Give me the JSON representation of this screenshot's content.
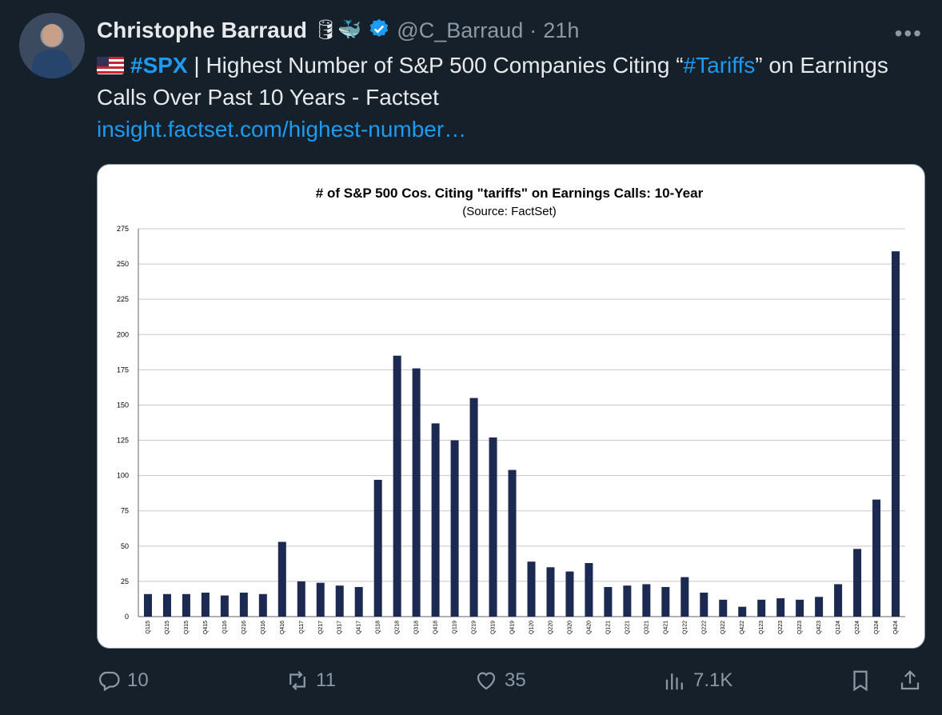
{
  "tweet": {
    "author_name": "Christophe Barraud",
    "handle": "@C_Barraud",
    "dot": "·",
    "time": "21h",
    "emoji_badges": "🛢🐳",
    "more": "•••",
    "text_tag_spx": "#SPX",
    "text_part1": " | Highest Number of S&P 500 Companies Citing “",
    "text_tag_tariffs": "#Tariffs",
    "text_part2": "” on Earnings Calls Over Past 10 Years - Factset",
    "link": "insight.factset.com/highest-number…"
  },
  "actions": {
    "replies": "10",
    "reposts": "11",
    "likes": "35",
    "views": "7.1K"
  },
  "colors": {
    "bar": "#1c2a52",
    "accent": "#1d9bf0"
  },
  "chart_data": {
    "type": "bar",
    "title": "# of S&P 500 Cos. Citing \"tariffs\" on Earnings Calls: 10-Year",
    "subtitle": "(Source: FactSet)",
    "xlabel": "",
    "ylabel": "",
    "ylim": [
      0,
      275
    ],
    "yticks": [
      0,
      25,
      50,
      75,
      100,
      125,
      150,
      175,
      200,
      225,
      250,
      275
    ],
    "grid": true,
    "categories": [
      "Q115",
      "Q215",
      "Q315",
      "Q415",
      "Q116",
      "Q216",
      "Q316",
      "Q416",
      "Q117",
      "Q217",
      "Q317",
      "Q417",
      "Q118",
      "Q218",
      "Q318",
      "Q418",
      "Q119",
      "Q219",
      "Q319",
      "Q419",
      "Q120",
      "Q220",
      "Q320",
      "Q420",
      "Q121",
      "Q221",
      "Q321",
      "Q421",
      "Q122",
      "Q222",
      "Q322",
      "Q422",
      "Q123",
      "Q223",
      "Q323",
      "Q423",
      "Q124",
      "Q224",
      "Q324",
      "Q424"
    ],
    "values": [
      16,
      16,
      16,
      17,
      15,
      17,
      16,
      53,
      25,
      24,
      22,
      21,
      97,
      185,
      176,
      137,
      125,
      155,
      127,
      104,
      39,
      35,
      32,
      38,
      21,
      22,
      23,
      21,
      28,
      17,
      12,
      7,
      12,
      13,
      12,
      14,
      23,
      48,
      83,
      259
    ]
  }
}
